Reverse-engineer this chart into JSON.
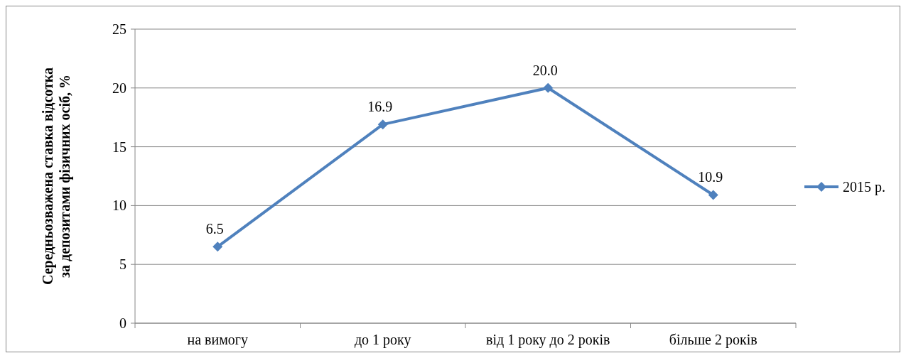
{
  "chart_data": {
    "type": "line",
    "ylabel": "Середньозважена ставка відсотка\nза депозитами фізичних осіб, %",
    "categories": [
      "на вимогу",
      "до 1 року",
      "від 1 року до 2 років",
      "більше 2 років"
    ],
    "series": [
      {
        "name": "2015 р.",
        "color": "#4f81bd",
        "values": [
          6.5,
          16.9,
          20.0,
          10.9
        ],
        "value_labels": [
          "6.5",
          "16.9",
          "20.0",
          "10.9"
        ]
      }
    ],
    "ylim": [
      0,
      25
    ],
    "yticks": [
      0,
      5,
      10,
      15,
      20,
      25
    ],
    "grid": "y",
    "legend": "right",
    "marker": "diamond"
  }
}
